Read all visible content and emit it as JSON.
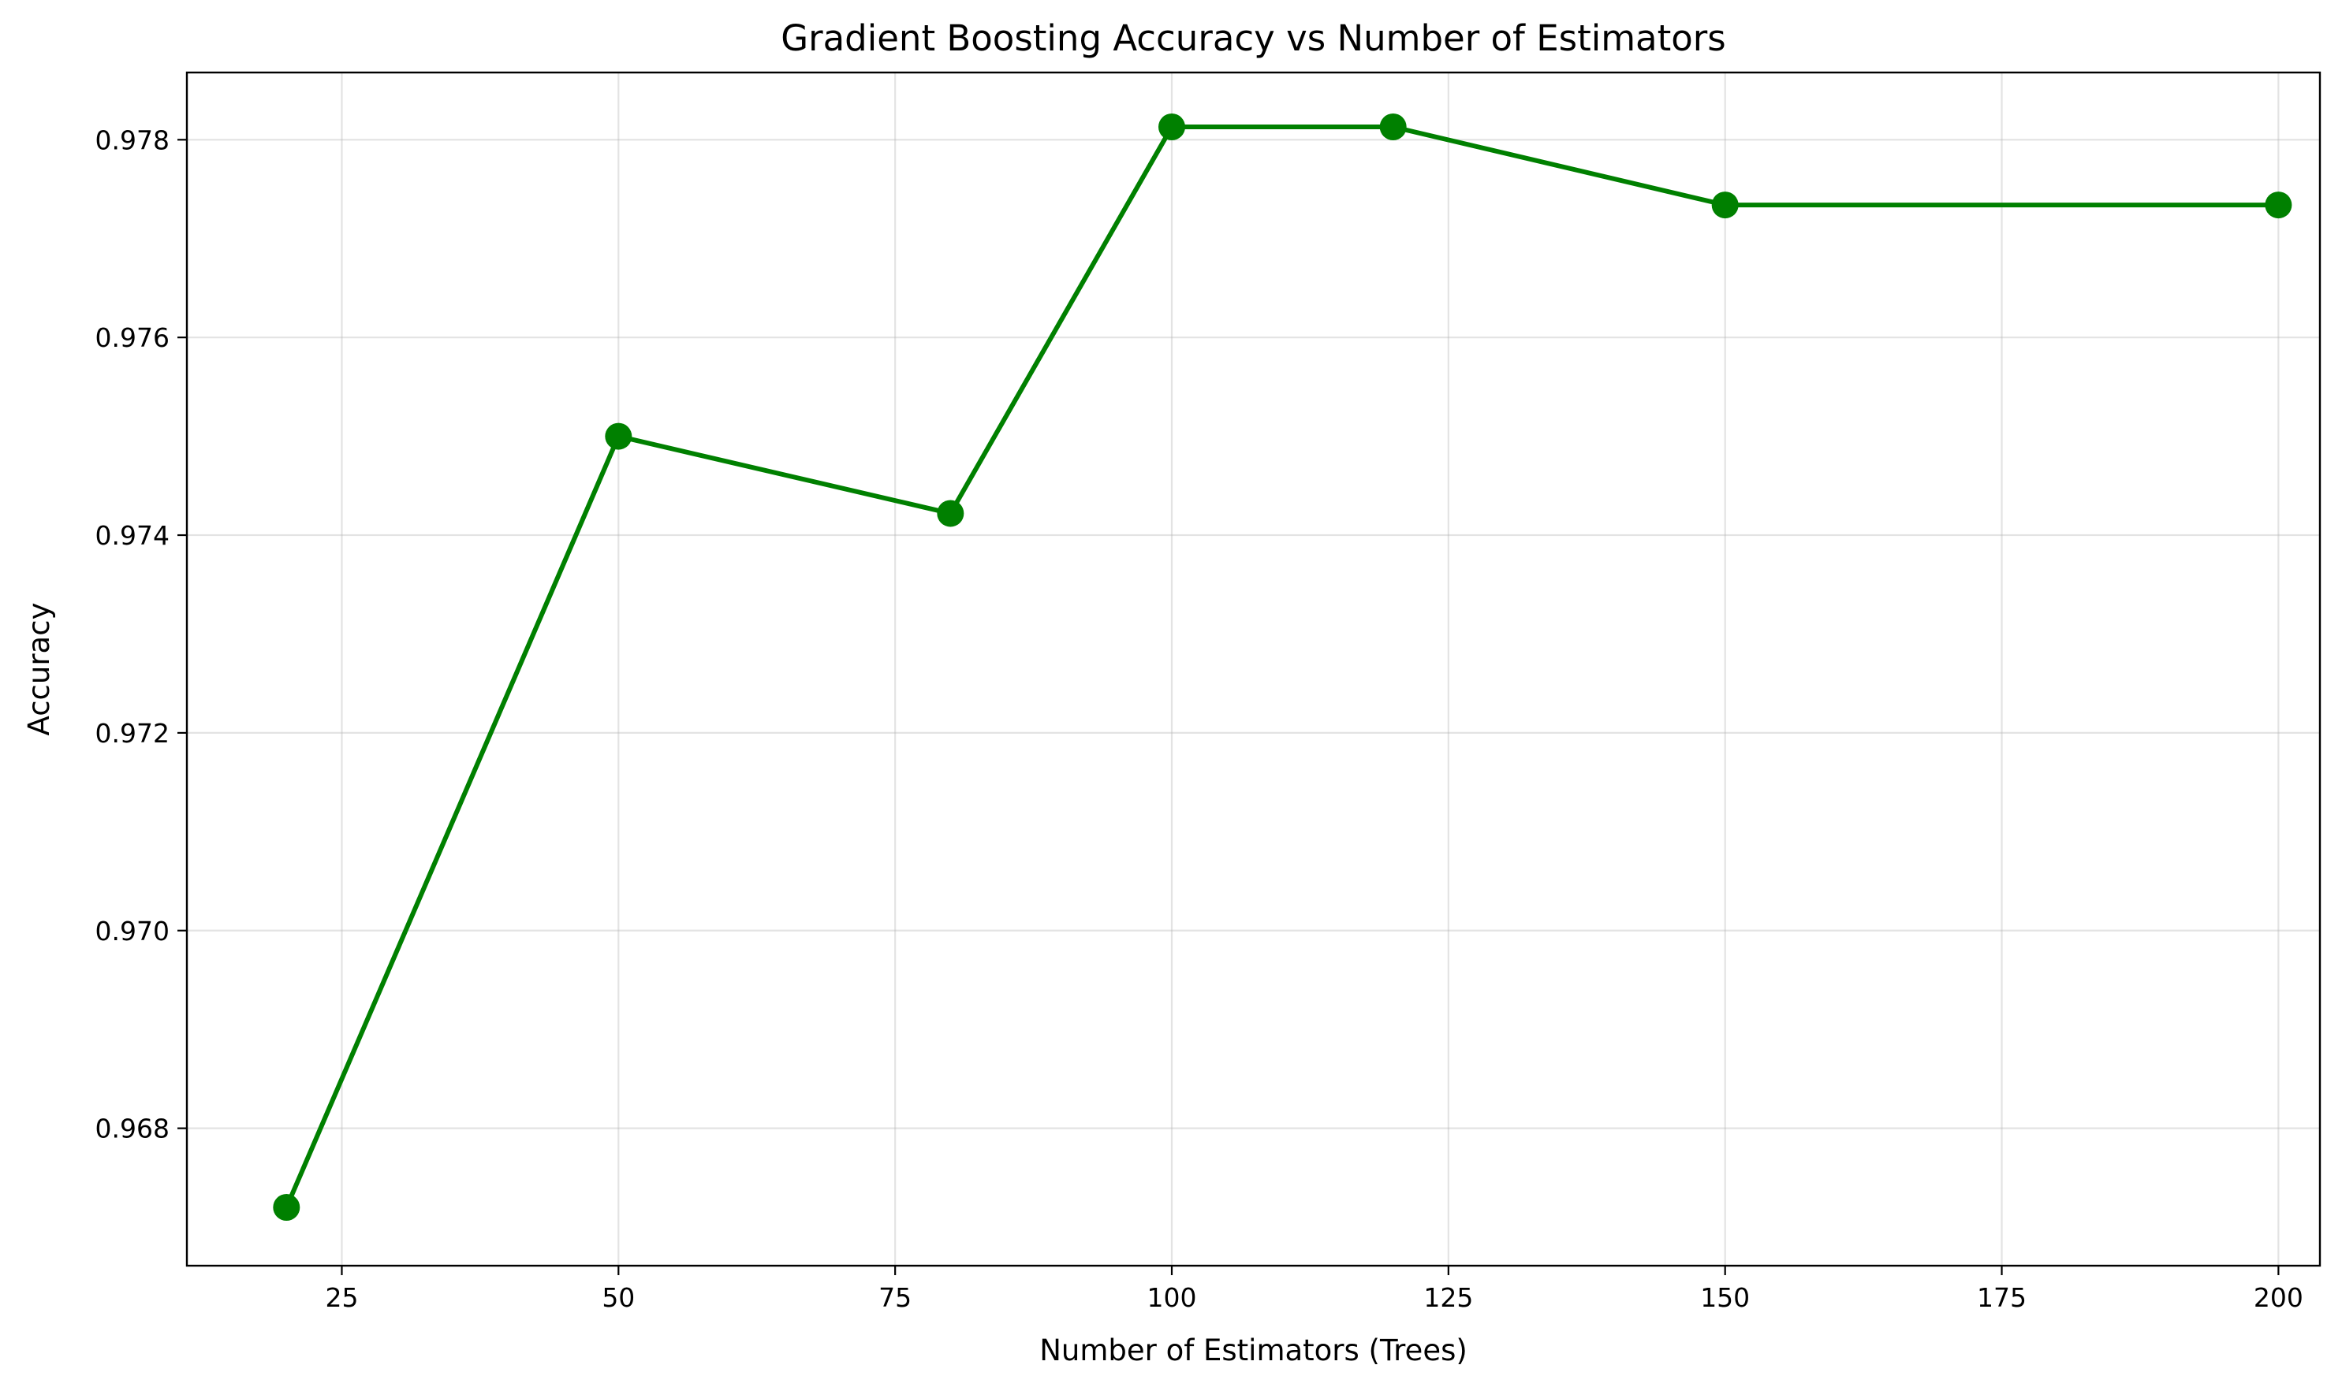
{
  "chart_data": {
    "type": "line",
    "title": "Gradient Boosting Accuracy vs Number of Estimators",
    "xlabel": "Number of Estimators (Trees)",
    "ylabel": "Accuracy",
    "xlim": [
      11,
      203.75
    ],
    "ylim": [
      0.96661,
      0.97868
    ],
    "xticks": [
      25,
      50,
      75,
      100,
      125,
      150,
      175,
      200
    ],
    "yticks": [
      0.968,
      0.97,
      0.972,
      0.974,
      0.976,
      0.978
    ],
    "xtick_labels": [
      "25",
      "50",
      "75",
      "100",
      "125",
      "150",
      "175",
      "200"
    ],
    "ytick_labels": [
      "0.968",
      "0.970",
      "0.972",
      "0.974",
      "0.976",
      "0.978"
    ],
    "grid": true,
    "series": [
      {
        "color": "#008000",
        "marker": "circle",
        "x": [
          20,
          50,
          80,
          100,
          120,
          150,
          200
        ],
        "y": [
          0.9672,
          0.975,
          0.97422,
          0.97813,
          0.97813,
          0.97734,
          0.97734
        ]
      }
    ]
  }
}
